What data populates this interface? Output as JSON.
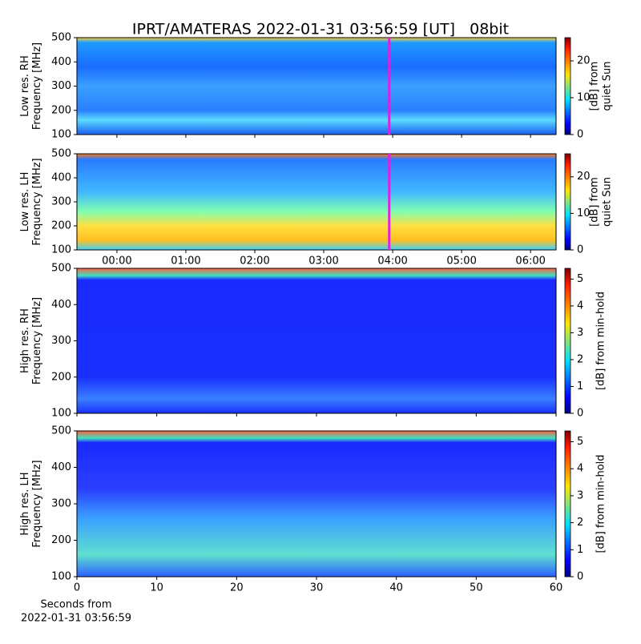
{
  "title": "IPRT/AMATERAS 2022-01-31 03:56:59 [UT]   08bit",
  "xlabel": [
    "Seconds from",
    "2022-01-31 03:56:59"
  ],
  "chart_data": [
    {
      "type": "spectrogram",
      "ylabel": [
        "Low res. RH",
        "Frequency [MHz]"
      ],
      "xlim": [
        -0.58,
        6.37
      ],
      "ylim": [
        100,
        500
      ],
      "yticks": [
        100,
        200,
        300,
        400,
        500
      ],
      "marker_x": 3.95,
      "marker_color": "#e020e0",
      "colorbar_label": [
        "[dB] from",
        "quiet Sun"
      ],
      "clim": [
        0,
        26.3
      ],
      "cticks": [
        0,
        10,
        20
      ]
    },
    {
      "type": "spectrogram",
      "ylabel": [
        "Low res. LH",
        "Frequency [MHz]"
      ],
      "xlim": [
        -0.58,
        6.37
      ],
      "ylim": [
        100,
        500
      ],
      "yticks": [
        100,
        200,
        300,
        400,
        500
      ],
      "xticks": [
        {
          "value": 0,
          "label": "00:00"
        },
        {
          "value": 1,
          "label": "01:00"
        },
        {
          "value": 2,
          "label": "02:00"
        },
        {
          "value": 3,
          "label": "03:00"
        },
        {
          "value": 4,
          "label": "04:00"
        },
        {
          "value": 5,
          "label": "05:00"
        },
        {
          "value": 6,
          "label": "06:00"
        }
      ],
      "marker_x": 3.95,
      "marker_color": "#e020e0",
      "colorbar_label": [
        "[dB] from",
        "quiet Sun"
      ],
      "clim": [
        0,
        26.3
      ],
      "cticks": [
        0,
        10,
        20
      ]
    },
    {
      "type": "spectrogram",
      "ylabel": [
        "High res. RH",
        "Frequency [MHz]"
      ],
      "xlim": [
        0,
        60
      ],
      "ylim": [
        100,
        500
      ],
      "yticks": [
        100,
        200,
        300,
        400,
        500
      ],
      "colorbar_label": [
        "[dB] from min-hold"
      ],
      "clim": [
        0,
        5.4
      ],
      "cticks": [
        0,
        1,
        2,
        3,
        4,
        5
      ]
    },
    {
      "type": "spectrogram",
      "ylabel": [
        "High res. LH",
        "Frequency [MHz]"
      ],
      "xlim": [
        0,
        60
      ],
      "ylim": [
        100,
        500
      ],
      "yticks": [
        100,
        200,
        300,
        400,
        500
      ],
      "xticks": [
        0,
        10,
        20,
        30,
        40,
        50,
        60
      ],
      "colorbar_label": [
        "[dB] from min-hold"
      ],
      "clim": [
        0,
        5.4
      ],
      "cticks": [
        0,
        1,
        2,
        3,
        4,
        5
      ]
    }
  ]
}
